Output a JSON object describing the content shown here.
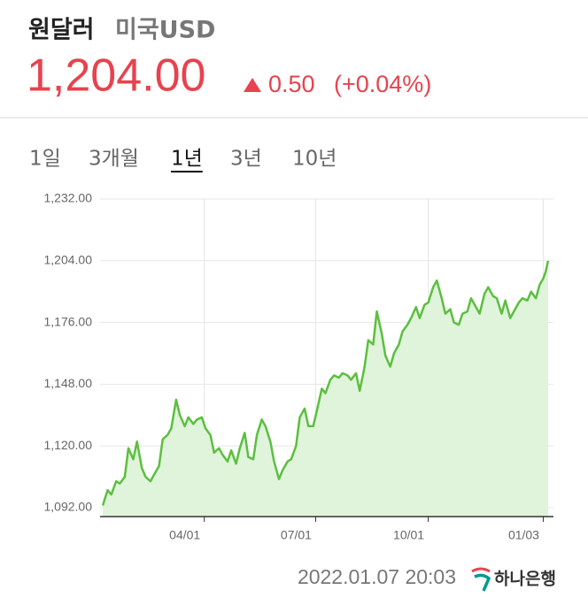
{
  "header": {
    "title": "원달러",
    "subtitle": "미국USD",
    "price": "1,204.00",
    "change": "0.50",
    "change_pct": "(+0.04%)"
  },
  "tabs": {
    "items": [
      "1일",
      "3개월",
      "1년",
      "3년",
      "10년"
    ],
    "selected": 2
  },
  "footer": {
    "timestamp": "2022.01.07 20:03",
    "bank": "하나은행"
  },
  "chart_data": {
    "type": "area",
    "color": "#5cbf3f",
    "fill": "#dff4da",
    "x": [
      "01/08",
      "01/12",
      "01/15",
      "01/19",
      "01/22",
      "01/26",
      "01/29",
      "02/02",
      "02/05",
      "02/09",
      "02/12",
      "02/16",
      "02/19",
      "02/23",
      "02/26",
      "03/02",
      "03/05",
      "03/09",
      "03/12",
      "03/16",
      "03/19",
      "03/23",
      "03/26",
      "03/30",
      "04/02",
      "04/06",
      "04/09",
      "04/13",
      "04/16",
      "04/20",
      "04/23",
      "04/27",
      "04/30",
      "05/04",
      "05/07",
      "05/11",
      "05/14",
      "05/18",
      "05/21",
      "05/25",
      "05/28",
      "06/01",
      "06/04",
      "06/08",
      "06/11",
      "06/15",
      "06/18",
      "06/22",
      "06/25",
      "06/29",
      "07/02",
      "07/06",
      "07/09",
      "07/13",
      "07/16",
      "07/20",
      "07/23",
      "07/27",
      "07/30",
      "08/03",
      "08/06",
      "08/10",
      "08/13",
      "08/17",
      "08/20",
      "08/24",
      "08/27",
      "08/31",
      "09/03",
      "09/07",
      "09/10",
      "09/14",
      "09/17",
      "09/21",
      "09/24",
      "09/28",
      "10/01",
      "10/05",
      "10/08",
      "10/12",
      "10/15",
      "10/19",
      "10/22",
      "10/26",
      "10/29",
      "11/02",
      "11/05",
      "11/09",
      "11/12",
      "11/16",
      "11/19",
      "11/23",
      "11/26",
      "11/30",
      "12/03",
      "12/07",
      "12/10",
      "12/14",
      "12/17",
      "12/21",
      "12/24",
      "12/28",
      "12/31",
      "01/03",
      "01/05",
      "01/07"
    ],
    "values": [
      1093,
      1100,
      1098,
      1104,
      1103,
      1106,
      1119,
      1114,
      1122,
      1110,
      1106,
      1104,
      1107,
      1111,
      1123,
      1125,
      1128,
      1141,
      1134,
      1129,
      1133,
      1130,
      1132,
      1133,
      1128,
      1125,
      1117,
      1119,
      1116,
      1113,
      1118,
      1112,
      1119,
      1126,
      1115,
      1114,
      1125,
      1132,
      1129,
      1122,
      1113,
      1105,
      1109,
      1113,
      1114,
      1120,
      1133,
      1137,
      1129,
      1129,
      1136,
      1146,
      1144,
      1150,
      1152,
      1151,
      1153,
      1152,
      1150,
      1153,
      1145,
      1156,
      1168,
      1166,
      1181,
      1171,
      1161,
      1156,
      1162,
      1166,
      1172,
      1175,
      1178,
      1183,
      1178,
      1184,
      1185,
      1192,
      1195,
      1187,
      1180,
      1182,
      1176,
      1175,
      1180,
      1181,
      1187,
      1183,
      1180,
      1189,
      1192,
      1188,
      1187,
      1180,
      1186,
      1178,
      1181,
      1185,
      1187,
      1186,
      1190,
      1187,
      1193,
      1196,
      1199,
      1204
    ],
    "xlim": [
      "01/08",
      "01/07"
    ],
    "xticks": [
      "04/01",
      "07/01",
      "10/01",
      "01/03"
    ],
    "ylim": [
      1088,
      1238
    ],
    "yticks": [
      {
        "value": 1092,
        "label": "1,092.00"
      },
      {
        "value": 1120,
        "label": "1,120.00"
      },
      {
        "value": 1148,
        "label": "1,148.00"
      },
      {
        "value": 1176,
        "label": "1,176.00"
      },
      {
        "value": 1204,
        "label": "1,204.00"
      },
      {
        "value": 1232,
        "label": "1,232.00"
      }
    ],
    "grid": true
  }
}
